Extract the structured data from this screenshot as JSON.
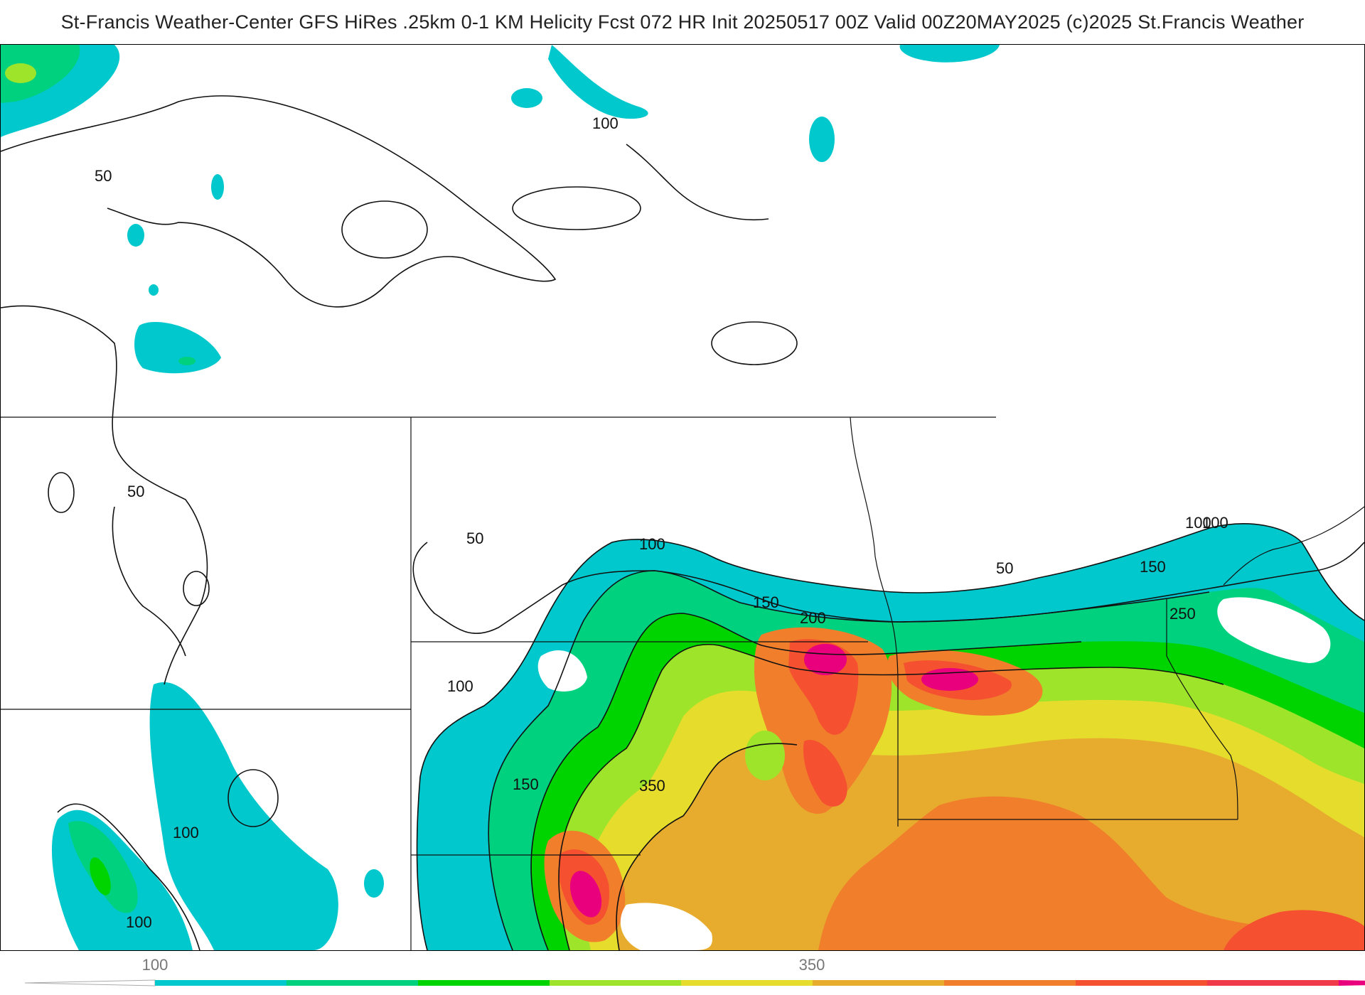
{
  "header": {
    "title": "St-Francis Weather-Center GFS HiRes .25km 0-1 KM Helicity Fcst 072 HR Init 20250517 00Z  Valid 00Z20MAY2025    (c)2025 St.Francis Weather"
  },
  "map": {
    "field": "0-1 KM Helicity",
    "contour_labels": [
      "100",
      "50",
      "50",
      "50",
      "100",
      "50",
      "100",
      "150",
      "200",
      "150",
      "100",
      "250",
      "100",
      "150",
      "350",
      "100",
      "100"
    ]
  },
  "colorbar": {
    "bins": [
      {
        "color": "#00c8cc"
      },
      {
        "color": "#00d17f"
      },
      {
        "color": "#00d400"
      },
      {
        "color": "#9ee42a"
      },
      {
        "color": "#e5dc2c"
      },
      {
        "color": "#e7ac2e"
      },
      {
        "color": "#f07e2b"
      },
      {
        "color": "#f55130"
      },
      {
        "color": "#f03a47"
      },
      {
        "color": "#e8007d"
      }
    ],
    "tick_labels": [
      "100",
      "350"
    ]
  }
}
